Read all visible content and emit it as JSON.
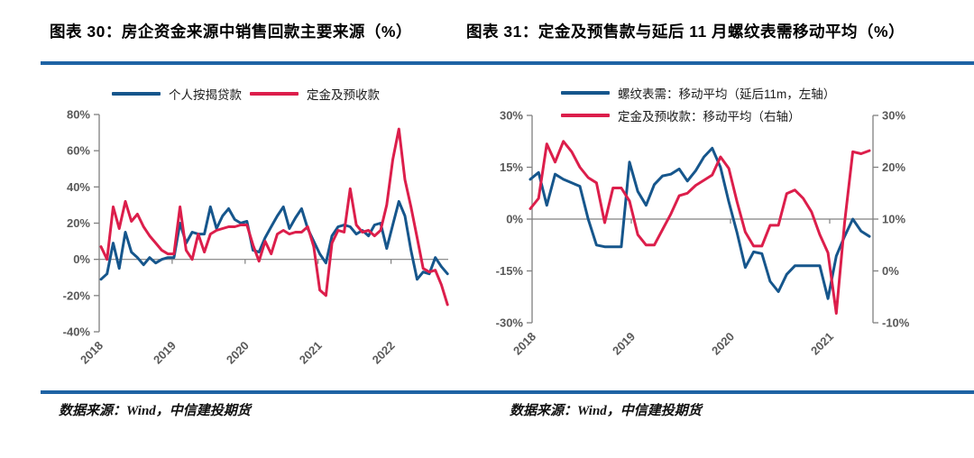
{
  "page": {
    "background": "#ffffff",
    "rule_color": "#1E63A4",
    "axis_color": "#808080",
    "tick_label_color": "#595959",
    "title_color": "#000000"
  },
  "chart_data": [
    {
      "type": "line",
      "title": "图表 30：房企资金来源中销售回款主要来源（%）",
      "source": "数据来源：Wind，中信建投期货",
      "legend_position": "top-center",
      "x_start": "2018-01",
      "x_frequency": "monthly",
      "x_tick_labels": [
        "2018",
        "2019",
        "2020",
        "2021",
        "2022"
      ],
      "left_axis": {
        "tick_labels": [
          "80%",
          "60%",
          "40%",
          "20%",
          "0%",
          "-20%",
          "-40%"
        ],
        "max": 80,
        "min": -40
      },
      "grid": "zero-line-only",
      "series": [
        {
          "name": "个人按揭贷款",
          "axis": "left",
          "color": "#16568C",
          "values": [
            -11,
            -8,
            9,
            -5,
            15,
            4,
            1,
            -3,
            1,
            -2,
            0,
            1,
            1,
            20,
            9,
            15,
            14,
            14,
            29,
            17,
            24,
            28,
            22,
            20,
            21,
            5,
            4,
            12,
            18,
            24,
            29,
            17,
            23,
            28,
            17,
            10,
            3,
            -2,
            13,
            18,
            19,
            18,
            14,
            16,
            13,
            19,
            20,
            6,
            19,
            32,
            24,
            5,
            -11,
            -7,
            -8,
            1,
            -4,
            -8
          ]
        },
        {
          "name": "定金及预收款",
          "axis": "left",
          "color": "#DC1E4B",
          "values": [
            7,
            0,
            29,
            17,
            32,
            21,
            25,
            18,
            13,
            9,
            5,
            3,
            3,
            29,
            5,
            0,
            14,
            4,
            14,
            16,
            17,
            18,
            18,
            19,
            19,
            8,
            -1,
            10,
            3,
            14,
            16,
            14,
            15,
            15,
            18,
            7,
            -17,
            -20,
            9,
            16,
            15,
            39,
            19,
            15,
            16,
            13,
            16,
            30,
            55,
            72,
            44,
            29,
            12,
            -5,
            -7,
            -6,
            -14,
            -25
          ]
        }
      ]
    },
    {
      "type": "line",
      "title": "图表 31：定金及预售款与延后 11 月螺纹表需移动平均（%）",
      "source": "数据来源：Wind，中信建投期货",
      "legend_position": "top-left",
      "x_start": "2018-01",
      "x_frequency": "monthly",
      "x_tick_labels": [
        "2018",
        "2019",
        "2020",
        "2021"
      ],
      "left_axis": {
        "tick_labels": [
          "30%",
          "15%",
          "0%",
          "-15%",
          "-30%"
        ],
        "max": 30,
        "min": -30
      },
      "right_axis": {
        "tick_labels": [
          "30%",
          "20%",
          "10%",
          "0%",
          "-10%"
        ],
        "max": 30,
        "min": -10
      },
      "grid": "zero-line-only",
      "series": [
        {
          "name": "螺纹表需：移动平均（延后11m，左轴）",
          "axis": "left",
          "color": "#16568C",
          "values": [
            11.5,
            13.5,
            4,
            13,
            11.5,
            10.5,
            9.5,
            0,
            -7.5,
            -8,
            -8,
            -8,
            16.5,
            8,
            4,
            10,
            12.5,
            13,
            14.5,
            11,
            14,
            18,
            20.5,
            15,
            5,
            -4,
            -14,
            -9.5,
            -10,
            -18,
            -21,
            -16,
            -13.5,
            -13.5,
            -13.5,
            -13.5,
            -23,
            -10.7,
            -5,
            0,
            -3.5,
            -5
          ]
        },
        {
          "name": "定金及预收款：移动平均（右轴）",
          "axis": "right",
          "color": "#DC1E4B",
          "values": [
            12,
            14,
            24.5,
            21,
            25,
            23,
            20,
            18,
            17,
            9.3,
            16,
            16,
            13.5,
            7,
            5,
            5,
            8,
            11,
            14.5,
            15,
            16.5,
            17.5,
            18.5,
            22,
            19.8,
            13.3,
            7.5,
            4.8,
            4.8,
            8.8,
            8.8,
            14.9,
            15.6,
            14,
            11.4,
            7,
            3.5,
            -8.2,
            9.3,
            23,
            22.6,
            23.2
          ]
        }
      ]
    }
  ]
}
